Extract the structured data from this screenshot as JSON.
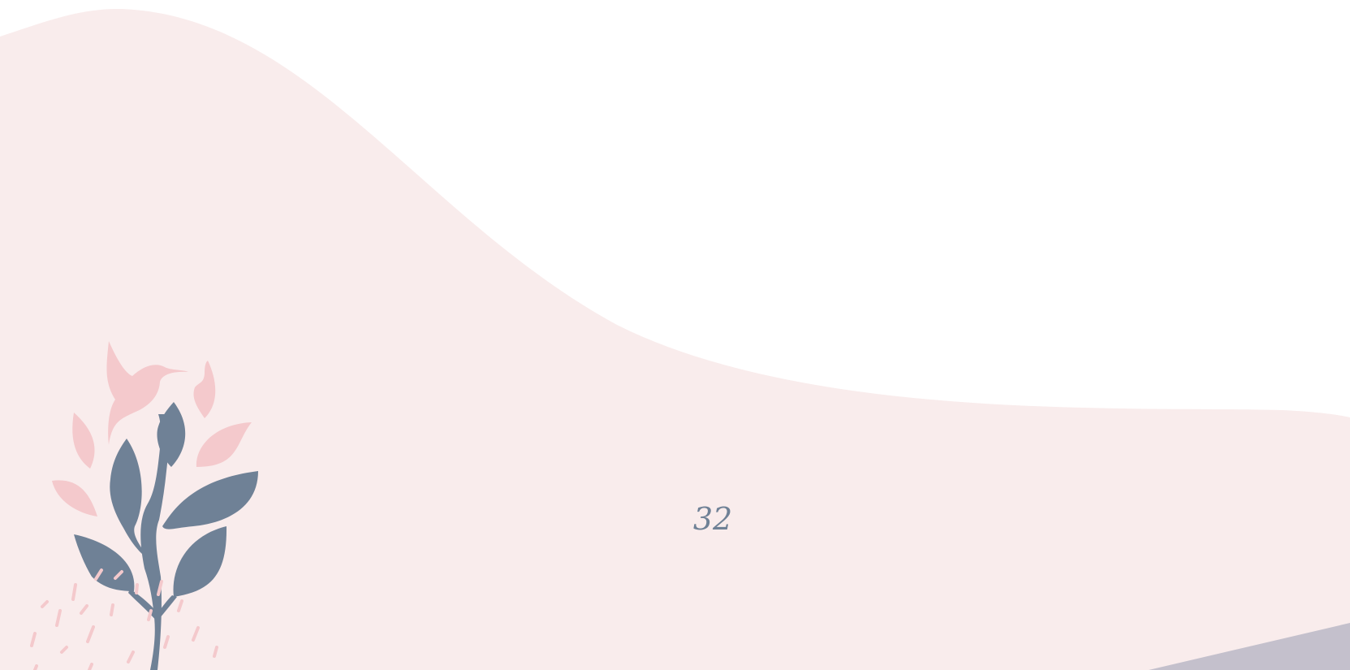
{
  "page_number": "32"
}
